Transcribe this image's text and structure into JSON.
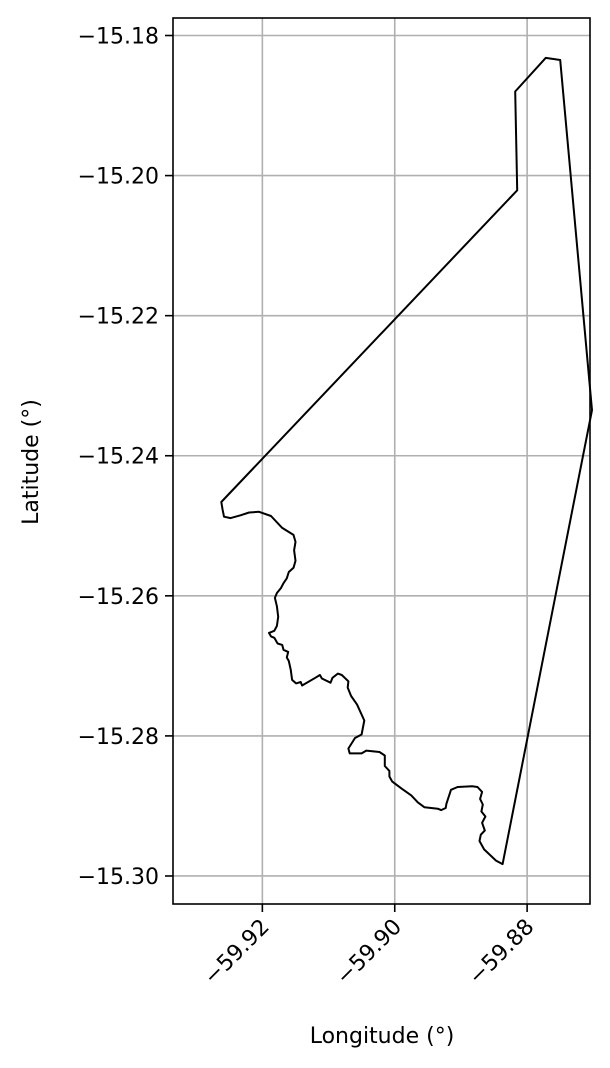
{
  "chart_data": {
    "type": "line",
    "title": "",
    "xlabel": "Longitude (°)",
    "ylabel": "Latitude (°)",
    "xlim": [
      -59.9335,
      -59.8705
    ],
    "ylim": [
      -15.304,
      -15.1775
    ],
    "grid": true,
    "x_ticks": [
      -59.92,
      -59.9,
      -59.88
    ],
    "x_tick_labels": [
      "−59.92",
      "−59.90",
      "−59.88"
    ],
    "y_ticks": [
      -15.18,
      -15.2,
      -15.22,
      -15.24,
      -15.26,
      -15.28,
      -15.3
    ],
    "y_tick_labels": [
      "−15.18",
      "−15.20",
      "−15.22",
      "−15.24",
      "−15.26",
      "−15.28",
      "−15.30"
    ],
    "colors": {
      "outline": "#000000",
      "grid": "#b0b0b0",
      "axes": "#000000"
    },
    "series": [
      {
        "points": [
          [
            -59.9262,
            -15.2466
          ],
          [
            -59.8815,
            -15.2021
          ],
          [
            -59.8818,
            -15.188
          ],
          [
            -59.8772,
            -15.1832
          ],
          [
            -59.875,
            -15.1835
          ],
          [
            -59.8702,
            -15.2335
          ],
          [
            -59.8837,
            -15.2983
          ],
          [
            -59.8847,
            -15.2978
          ],
          [
            -59.8865,
            -15.2962
          ],
          [
            -59.8872,
            -15.295
          ],
          [
            -59.887,
            -15.2941
          ],
          [
            -59.8864,
            -15.2935
          ],
          [
            -59.8868,
            -15.2924
          ],
          [
            -59.8863,
            -15.2915
          ],
          [
            -59.8869,
            -15.2908
          ],
          [
            -59.8867,
            -15.2898
          ],
          [
            -59.8871,
            -15.289
          ],
          [
            -59.8868,
            -15.288
          ],
          [
            -59.8875,
            -15.2873
          ],
          [
            -59.8883,
            -15.2872
          ],
          [
            -59.8905,
            -15.2873
          ],
          [
            -59.8915,
            -15.2877
          ],
          [
            -59.8922,
            -15.2897
          ],
          [
            -59.8923,
            -15.2903
          ],
          [
            -59.893,
            -15.2906
          ],
          [
            -59.8935,
            -15.2904
          ],
          [
            -59.8955,
            -15.2902
          ],
          [
            -59.8965,
            -15.2895
          ],
          [
            -59.8975,
            -15.2885
          ],
          [
            -59.899,
            -15.2875
          ],
          [
            -59.9004,
            -15.2865
          ],
          [
            -59.9008,
            -15.2858
          ],
          [
            -59.9008,
            -15.285
          ],
          [
            -59.9015,
            -15.2843
          ],
          [
            -59.9015,
            -15.2828
          ],
          [
            -59.9023,
            -15.2823
          ],
          [
            -59.9043,
            -15.2821
          ],
          [
            -59.905,
            -15.2825
          ],
          [
            -59.9068,
            -15.2825
          ],
          [
            -59.907,
            -15.2818
          ],
          [
            -59.906,
            -15.2803
          ],
          [
            -59.905,
            -15.2798
          ],
          [
            -59.9046,
            -15.2778
          ],
          [
            -59.9057,
            -15.2755
          ],
          [
            -59.9066,
            -15.2743
          ],
          [
            -59.9071,
            -15.2731
          ],
          [
            -59.907,
            -15.2722
          ],
          [
            -59.908,
            -15.2713
          ],
          [
            -59.9086,
            -15.2711
          ],
          [
            -59.9094,
            -15.2717
          ],
          [
            -59.9097,
            -15.2724
          ],
          [
            -59.911,
            -15.2718
          ],
          [
            -59.9113,
            -15.2713
          ],
          [
            -59.912,
            -15.2717
          ],
          [
            -59.914,
            -15.2728
          ],
          [
            -59.9142,
            -15.2723
          ],
          [
            -59.9149,
            -15.2725
          ],
          [
            -59.9155,
            -15.272
          ],
          [
            -59.9157,
            -15.2706
          ],
          [
            -59.916,
            -15.2693
          ],
          [
            -59.9163,
            -15.2688
          ],
          [
            -59.9161,
            -15.268
          ],
          [
            -59.9168,
            -15.2677
          ],
          [
            -59.917,
            -15.267
          ],
          [
            -59.9177,
            -15.2668
          ],
          [
            -59.9182,
            -15.266
          ],
          [
            -59.9187,
            -15.2658
          ],
          [
            -59.919,
            -15.2653
          ],
          [
            -59.9182,
            -15.265
          ],
          [
            -59.9178,
            -15.2643
          ],
          [
            -59.9176,
            -15.263
          ],
          [
            -59.9178,
            -15.2615
          ],
          [
            -59.9181,
            -15.2603
          ],
          [
            -59.9178,
            -15.2596
          ],
          [
            -59.9172,
            -15.2589
          ],
          [
            -59.9168,
            -15.2582
          ],
          [
            -59.9163,
            -15.2575
          ],
          [
            -59.916,
            -15.2566
          ],
          [
            -59.9153,
            -15.256
          ],
          [
            -59.915,
            -15.255
          ],
          [
            -59.9152,
            -15.2535
          ],
          [
            -59.915,
            -15.2523
          ],
          [
            -59.9153,
            -15.2513
          ],
          [
            -59.917,
            -15.2503
          ],
          [
            -59.9187,
            -15.2486
          ],
          [
            -59.9205,
            -15.248
          ],
          [
            -59.922,
            -15.2481
          ],
          [
            -59.9233,
            -15.2485
          ],
          [
            -59.9248,
            -15.2489
          ],
          [
            -59.9258,
            -15.2487
          ],
          [
            -59.926,
            -15.2477
          ],
          [
            -59.9262,
            -15.2466
          ]
        ]
      }
    ]
  }
}
